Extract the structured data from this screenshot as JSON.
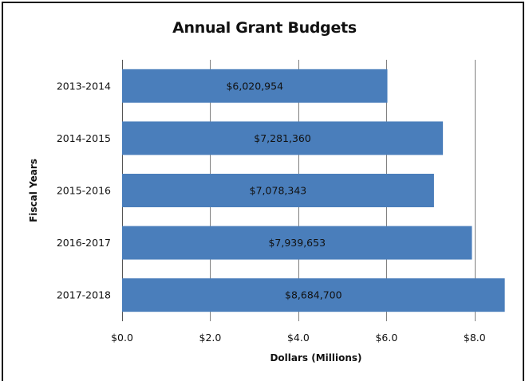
{
  "chart_data": {
    "type": "bar",
    "orientation": "horizontal",
    "title": "Annual Grant Budgets",
    "xlabel": "Dollars (Millions)",
    "ylabel": "Fiscal Years",
    "categories": [
      "2013-2014",
      "2014-2015",
      "2015-2016",
      "2016-2017",
      "2017-2018"
    ],
    "values": [
      6.020954,
      7.28136,
      7.078343,
      7.939653,
      8.6847
    ],
    "data_labels": [
      "$6,020,954",
      "$7,281,360",
      "$7,078,343",
      "$7,939,653",
      "$8,684,700"
    ],
    "xlim": [
      0,
      8.8
    ],
    "xticks": [
      0,
      2,
      4,
      6,
      8
    ],
    "xtick_labels": [
      "$0.0",
      "$2.0",
      "$4.0",
      "$6.0",
      "$8.0"
    ],
    "grid": "vertical",
    "legend": "none",
    "bar_color": "#4a7ebb"
  }
}
